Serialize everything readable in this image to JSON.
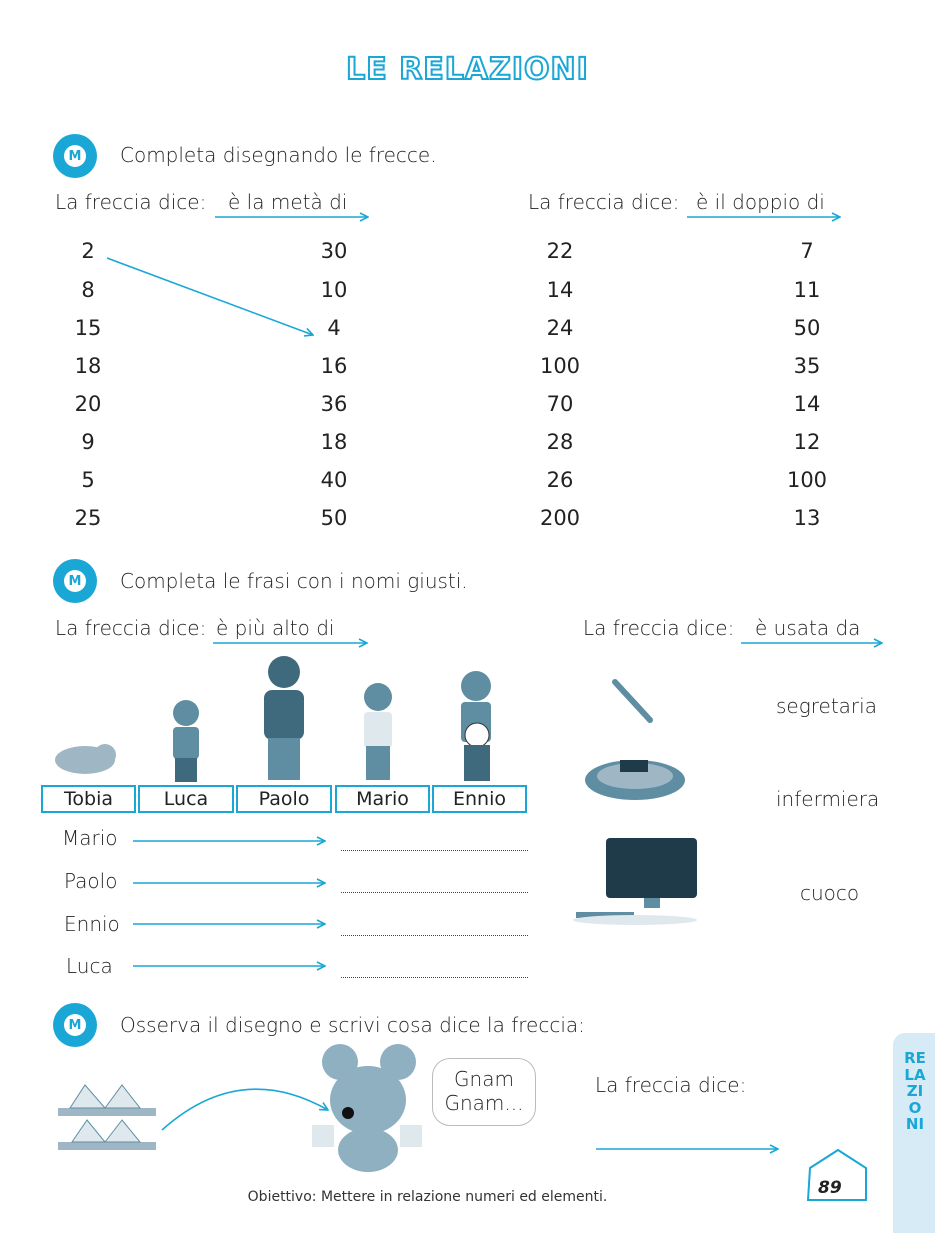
{
  "title": "LE RELAZIONI",
  "accent": "#1aa7d6",
  "exercise1": {
    "instruction": "Completa disegnando le frecce.",
    "icon": "M",
    "left": {
      "label": "La freccia dice:",
      "relation": "è la metà di",
      "col_a": [
        "2",
        "8",
        "15",
        "18",
        "20",
        "9",
        "5",
        "25"
      ],
      "col_b": [
        "30",
        "10",
        "4",
        "16",
        "36",
        "18",
        "40",
        "50"
      ]
    },
    "right": {
      "label": "La freccia dice:",
      "relation": "è il doppio di",
      "col_a": [
        "22",
        "14",
        "24",
        "100",
        "70",
        "28",
        "26",
        "200"
      ],
      "col_b": [
        "7",
        "11",
        "50",
        "35",
        "14",
        "12",
        "100",
        "13"
      ]
    }
  },
  "exercise2": {
    "instruction": "Completa le frasi con i nomi giusti.",
    "icon": "M",
    "left": {
      "label": "La freccia dice:",
      "relation": "è più alto di",
      "names": [
        "Tobia",
        "Luca",
        "Paolo",
        "Mario",
        "Ennio"
      ],
      "rows": [
        "Mario",
        "Paolo",
        "Ennio",
        "Luca"
      ]
    },
    "right": {
      "label": "La freccia dice:",
      "relation": "è usata da",
      "people": [
        "segretaria",
        "infermiera",
        "cuoco"
      ]
    }
  },
  "exercise3": {
    "instruction": "Osserva il disegno e scrivi cosa dice la freccia:",
    "icon": "M",
    "speech": "Gnam Gnam...",
    "label": "La freccia dice:"
  },
  "footer": {
    "objective": "Obiettivo: Mettere in relazione numeri ed elementi.",
    "page_number": "89",
    "side_tab": "RELAZIONI"
  }
}
